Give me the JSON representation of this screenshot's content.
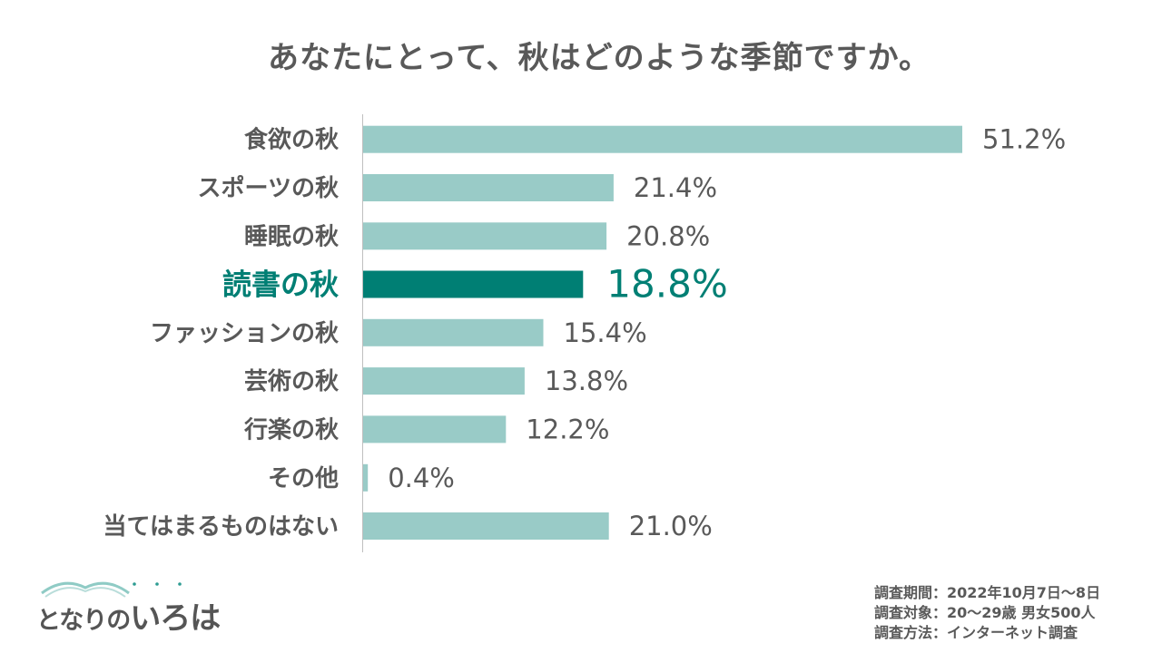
{
  "chart_data": {
    "type": "bar",
    "orientation": "horizontal",
    "title": "あなたにとって、秋はどのような季節ですか。",
    "categories": [
      "食欲の秋",
      "スポーツの秋",
      "睡眠の秋",
      "読書の秋",
      "ファッションの秋",
      "芸術の秋",
      "行楽の秋",
      "その他",
      "当てはまるものはない"
    ],
    "values": [
      51.2,
      21.4,
      20.8,
      18.8,
      15.4,
      13.8,
      12.2,
      0.4,
      21.0
    ],
    "value_labels": [
      "51.2%",
      "21.4%",
      "20.8%",
      "18.8%",
      "15.4%",
      "13.8%",
      "12.2%",
      "0.4%",
      "21.0%"
    ],
    "highlight": "読書の秋",
    "colors": {
      "bar": "#99CBC7",
      "highlight": "#007F74",
      "text": "#595959",
      "axis": "#BFBFBF"
    },
    "grid": false,
    "legend": "none"
  },
  "logo": {
    "text_small": "となりの",
    "text_big": "いろは"
  },
  "notes": [
    "調査期間：2022年10月7日～8日",
    "調査対象：20～29歳 男女500人",
    "調査方法：インターネット調査"
  ]
}
